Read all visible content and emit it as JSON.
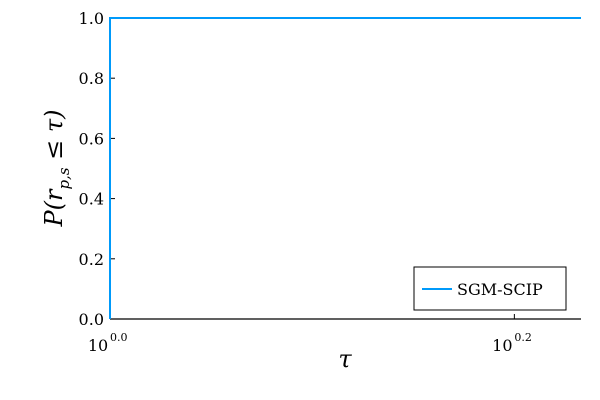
{
  "chart_data": {
    "type": "line",
    "x_scale": "log10",
    "xlim": [
      1.0,
      1.71
    ],
    "ylim": [
      0.0,
      1.0
    ],
    "x_ticks": [
      {
        "base": "10",
        "exp": "0.0",
        "value": 1.0
      },
      {
        "base": "10",
        "exp": "0.2",
        "value": 1.585
      }
    ],
    "y_ticks": [
      "0.0",
      "0.2",
      "0.4",
      "0.6",
      "0.8",
      "1.0"
    ],
    "y_tick_values": [
      0.0,
      0.2,
      0.4,
      0.6,
      0.8,
      1.0
    ],
    "xlabel": "τ",
    "ylabel": {
      "main": "P(r",
      "sub": "p,s",
      "rest": " ≤ τ)"
    },
    "grid": false,
    "legend_position": "bottom-right",
    "series": [
      {
        "name": "SGM-SCIP",
        "color": "#009AFA",
        "x": [
          1.0,
          1.0,
          1.71
        ],
        "y": [
          0.0,
          1.0,
          1.0
        ]
      }
    ]
  }
}
